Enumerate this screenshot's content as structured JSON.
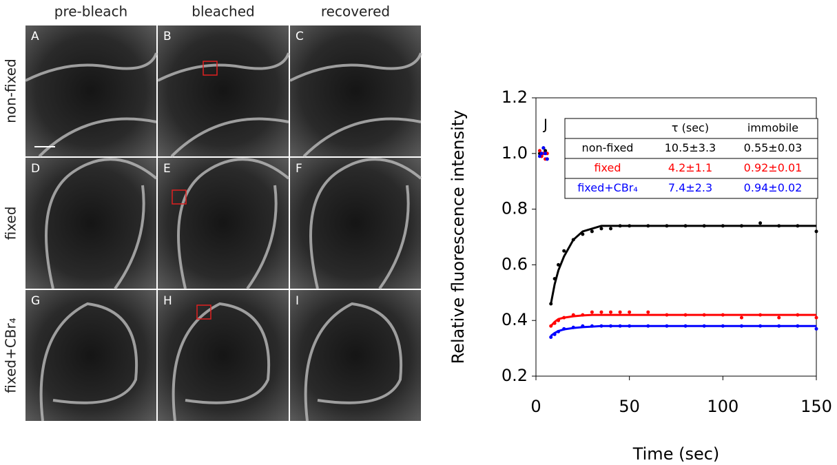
{
  "figure": {
    "columns": [
      "pre-bleach",
      "bleached",
      "recovered"
    ],
    "rows": [
      "non-fixed",
      "fixed",
      "fixed+CBr₄"
    ],
    "panels": [
      "A",
      "B",
      "C",
      "D",
      "E",
      "F",
      "G",
      "H",
      "I"
    ]
  },
  "chart_data": {
    "type": "scatter",
    "panel": "J",
    "xlabel": "Time (sec)",
    "ylabel": "Relative fluorescence intensity",
    "xlim": [
      0,
      150
    ],
    "xticks": [
      0,
      50,
      100,
      150
    ],
    "ylim": [
      0.2,
      1.2
    ],
    "yticks": [
      0.2,
      0.4,
      0.6,
      0.8,
      {
        "value": 1,
        "label": "1.0"
      },
      1.2
    ],
    "x": [
      2,
      3,
      4,
      5,
      6,
      8,
      10,
      12,
      15,
      20,
      25,
      30,
      35,
      40,
      45,
      50,
      60,
      70,
      80,
      90,
      100,
      110,
      120,
      130,
      140,
      150
    ],
    "series": [
      {
        "color": "#000000",
        "style": "points",
        "values": [
          1.0,
          0.99,
          1.02,
          1.01,
          0.98,
          0.46,
          0.55,
          0.6,
          0.65,
          0.69,
          0.71,
          0.72,
          0.73,
          0.73,
          0.74,
          0.74,
          0.74,
          0.74,
          0.74,
          0.74,
          0.74,
          0.74,
          0.75,
          0.74,
          0.74,
          0.72
        ]
      },
      {
        "color": "#000000",
        "style": "line",
        "values": [
          null,
          null,
          null,
          null,
          null,
          0.46,
          0.53,
          0.58,
          0.63,
          0.69,
          0.72,
          0.73,
          0.74,
          0.74,
          0.74,
          0.74,
          0.74,
          0.74,
          0.74,
          0.74,
          0.74,
          0.74,
          0.74,
          0.74,
          0.74,
          0.74
        ]
      },
      {
        "color": "#ff0000",
        "style": "points",
        "values": [
          1.01,
          0.99,
          1.0,
          0.98,
          1.0,
          0.38,
          0.39,
          0.4,
          0.41,
          0.42,
          0.42,
          0.43,
          0.43,
          0.43,
          0.43,
          0.43,
          0.43,
          0.42,
          0.42,
          0.42,
          0.42,
          0.41,
          0.42,
          0.41,
          0.42,
          0.41
        ]
      },
      {
        "color": "#ff0000",
        "style": "line",
        "values": [
          null,
          null,
          null,
          null,
          null,
          0.38,
          0.395,
          0.405,
          0.41,
          0.415,
          0.418,
          0.42,
          0.42,
          0.42,
          0.42,
          0.42,
          0.42,
          0.42,
          0.42,
          0.42,
          0.42,
          0.42,
          0.42,
          0.42,
          0.42,
          0.42
        ]
      },
      {
        "color": "#0000ff",
        "style": "points",
        "values": [
          0.99,
          1.0,
          1.02,
          1.0,
          0.98,
          0.34,
          0.35,
          0.36,
          0.37,
          0.375,
          0.38,
          0.38,
          0.38,
          0.38,
          0.38,
          0.38,
          0.38,
          0.38,
          0.38,
          0.38,
          0.38,
          0.38,
          0.38,
          0.38,
          0.38,
          0.37
        ]
      },
      {
        "color": "#0000ff",
        "style": "line",
        "values": [
          null,
          null,
          null,
          null,
          null,
          0.345,
          0.355,
          0.362,
          0.368,
          0.373,
          0.376,
          0.378,
          0.38,
          0.38,
          0.38,
          0.38,
          0.38,
          0.38,
          0.38,
          0.38,
          0.38,
          0.38,
          0.38,
          0.38,
          0.38,
          0.38
        ]
      }
    ],
    "table": {
      "header": [
        "τ (sec)",
        "immobile"
      ],
      "rows": [
        {
          "label": "non-fixed",
          "tau": "10.5±3.3",
          "immobile": "0.55±0.03",
          "color": "#000000"
        },
        {
          "label": "fixed",
          "tau": "4.2±1.1",
          "immobile": "0.92±0.01",
          "color": "#ff0000"
        },
        {
          "label": "fixed+CBr₄",
          "tau": "7.4±2.3",
          "immobile": "0.94±0.02",
          "color": "#0000ff"
        }
      ]
    }
  }
}
